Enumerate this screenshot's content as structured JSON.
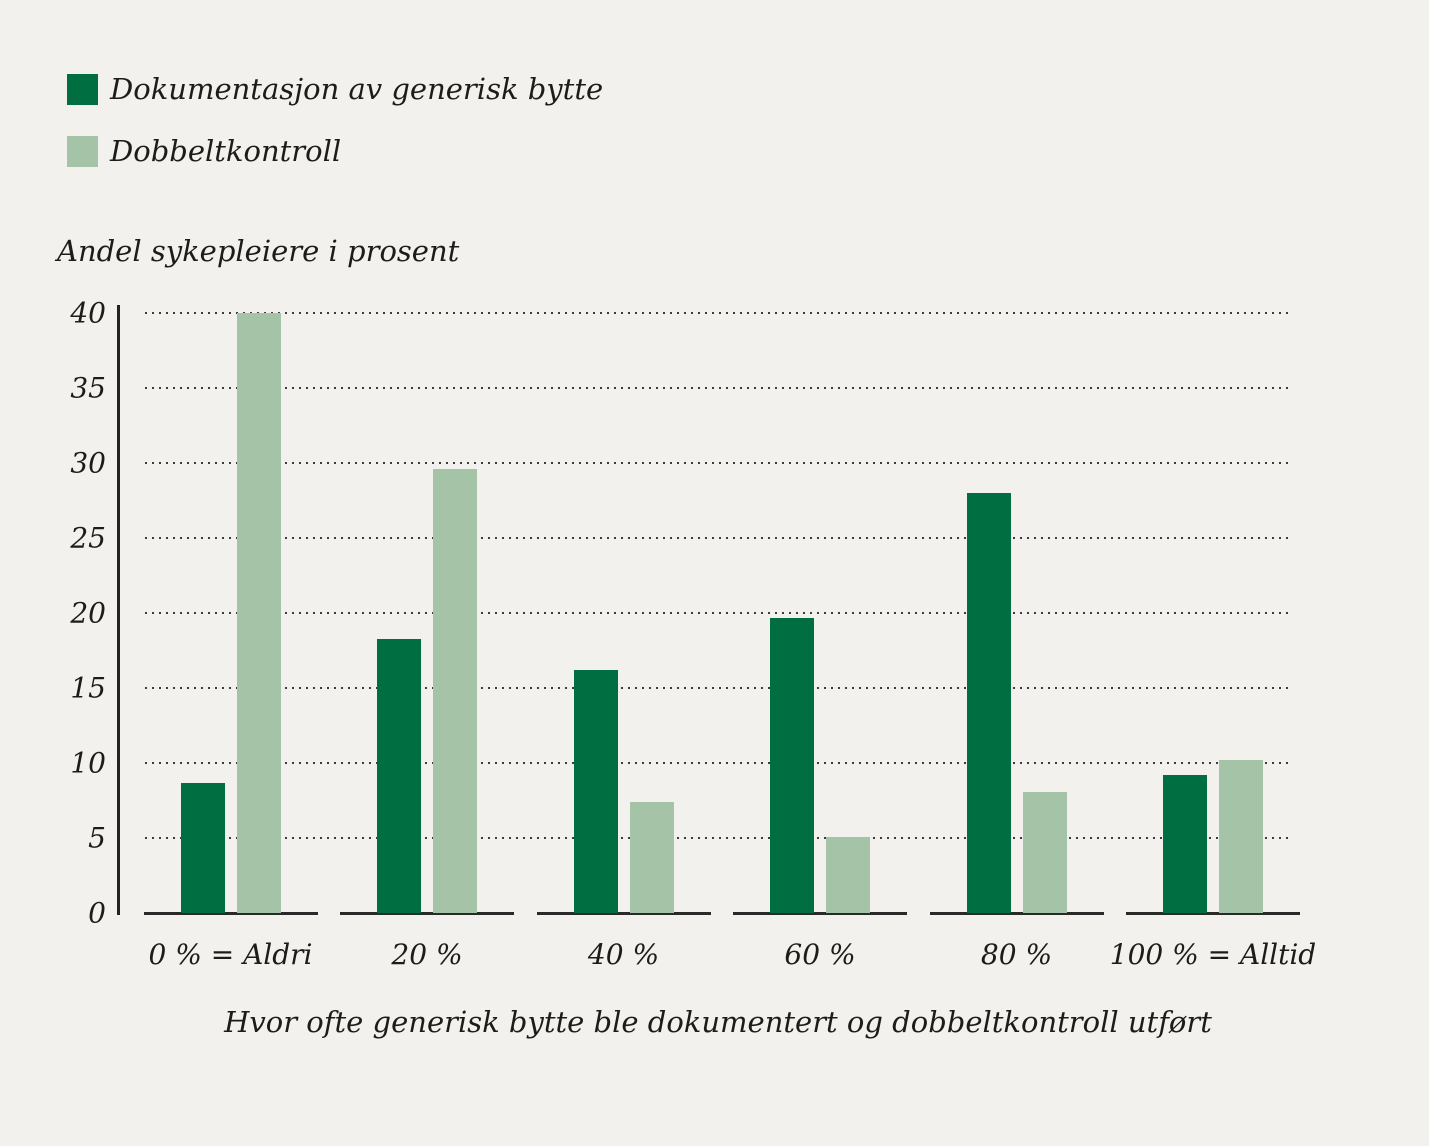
{
  "colors": {
    "background": "#f2f1ee",
    "bar_dark": "#006e41",
    "bar_light": "#a5c3a7",
    "text": "#1d1c1a",
    "grid_dots": "#3b3b3b",
    "axis_line": "#232323"
  },
  "legend": {
    "items": [
      {
        "label": "Dokumentasjon av generisk bytte",
        "color": "#006e41"
      },
      {
        "label": "Dobbeltkontroll",
        "color": "#a5c3a7"
      }
    ]
  },
  "chart_data": {
    "type": "bar",
    "title": "",
    "ylabel": "Andel sykepleiere i prosent",
    "xlabel": "Hvor ofte generisk bytte ble dokumentert og dobbeltkontroll utført",
    "categories": [
      "0 % = Aldri",
      "20 %",
      "40 %",
      "60 %",
      "80 %",
      "100 % = Alltid"
    ],
    "series": [
      {
        "name": "Dokumentasjon av generisk bytte",
        "color": "#006e41",
        "values": [
          8.7,
          18.3,
          16.2,
          19.7,
          28.0,
          9.2
        ]
      },
      {
        "name": "Dobbeltkontroll",
        "color": "#a5c3a7",
        "values": [
          40.0,
          29.6,
          7.4,
          5.1,
          8.1,
          10.2
        ]
      }
    ],
    "ylim": [
      0,
      40
    ],
    "yticks": [
      0,
      5,
      10,
      15,
      20,
      25,
      30,
      35,
      40
    ],
    "grid": "dotted-horizontal",
    "legend_position": "top-left"
  }
}
